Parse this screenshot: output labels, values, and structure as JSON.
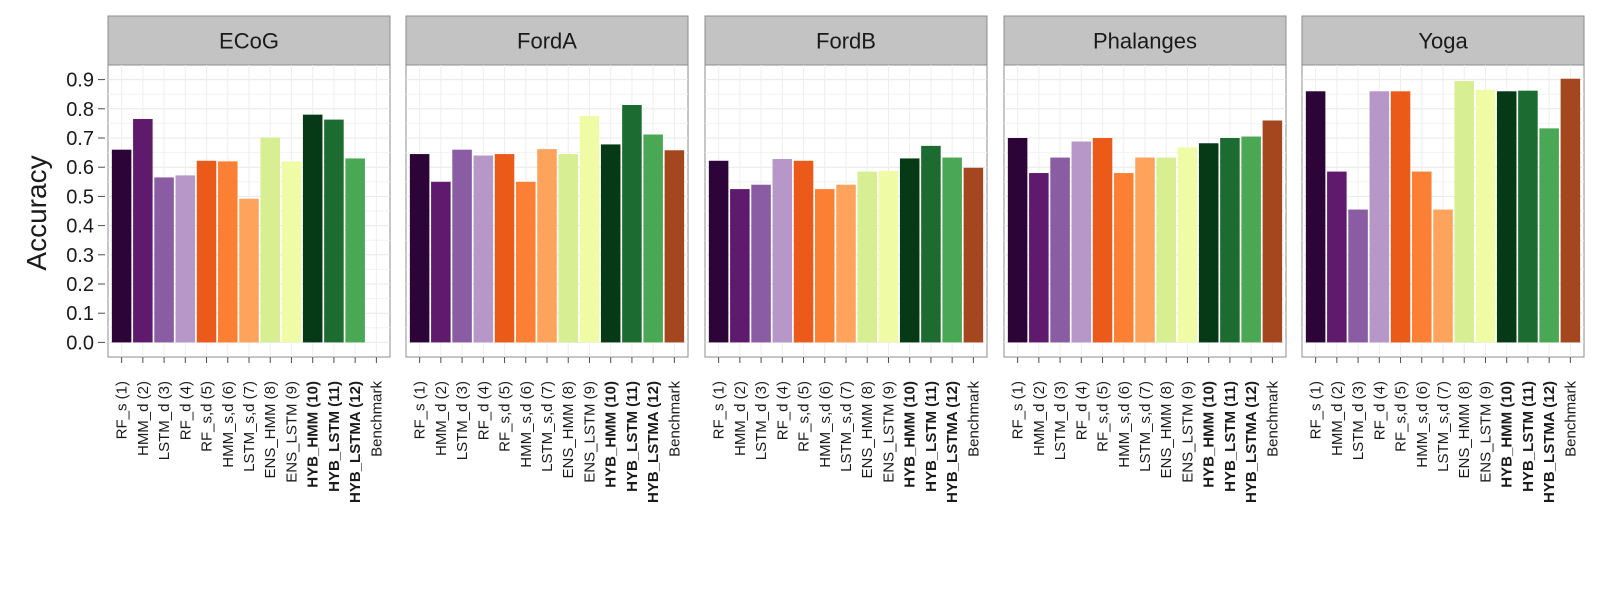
{
  "chart_data": {
    "type": "bar",
    "ylabel": "Accuracy",
    "ylim": [
      -0.05,
      0.95
    ],
    "yticks": [
      "0.0",
      "0.1",
      "0.2",
      "0.3",
      "0.4",
      "0.5",
      "0.6",
      "0.7",
      "0.8",
      "0.9"
    ],
    "categories": [
      "RF_s (1)",
      "HMM_d (2)",
      "LSTM_d (3)",
      "RF_d (4)",
      "RF_s,d (5)",
      "HMM_s,d (6)",
      "LSTM_s,d (7)",
      "ENS_HMM (8)",
      "ENS_LSTM (9)",
      "HYB_HMM (10)",
      "HYB_LSTM (11)",
      "HYB_LSTMA (12)",
      "Benchmark"
    ],
    "bold_categories": [
      "HYB_HMM (10)",
      "HYB_LSTM (11)",
      "HYB_LSTMA (12)"
    ],
    "colors": [
      "#2d0438",
      "#5f1a6e",
      "#8a5ca4",
      "#b697c8",
      "#ec5a1a",
      "#fb8033",
      "#fda35c",
      "#d7ee92",
      "#f0fba6",
      "#063a17",
      "#1c6c31",
      "#4aa854",
      "#a4461e"
    ],
    "facets": [
      {
        "name": "ECoG",
        "values": [
          0.66,
          0.765,
          0.565,
          0.572,
          0.622,
          0.62,
          0.492,
          0.702,
          0.62,
          0.78,
          0.763,
          0.63,
          null
        ]
      },
      {
        "name": "FordA",
        "values": [
          0.645,
          0.55,
          0.66,
          0.64,
          0.645,
          0.55,
          0.662,
          0.645,
          0.775,
          0.678,
          0.813,
          0.712,
          0.658
        ]
      },
      {
        "name": "FordB",
        "values": [
          0.622,
          0.525,
          0.54,
          0.628,
          0.622,
          0.525,
          0.54,
          0.585,
          0.587,
          0.63,
          0.673,
          0.633,
          0.598
        ]
      },
      {
        "name": "Phalanges",
        "values": [
          0.7,
          0.58,
          0.633,
          0.688,
          0.7,
          0.58,
          0.633,
          0.633,
          0.668,
          0.682,
          0.7,
          0.705,
          0.76
        ]
      },
      {
        "name": "Yoga",
        "values": [
          0.86,
          0.585,
          0.455,
          0.86,
          0.86,
          0.585,
          0.455,
          0.895,
          0.865,
          0.86,
          0.862,
          0.733,
          0.903
        ]
      }
    ]
  }
}
